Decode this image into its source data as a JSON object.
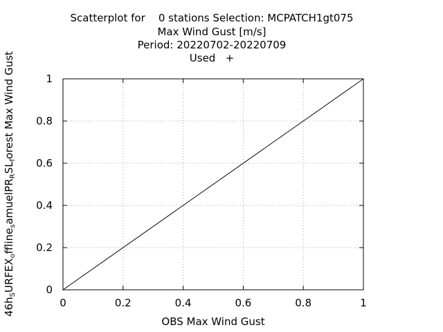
{
  "title_lines": [
    "Scatterplot for    0 stations Selection: MCPATCH1gt075",
    "Max Wind Gust [m/s]",
    "Period: 20220702-20220709",
    "Used   +"
  ],
  "xlabel": "OBS Max Wind Gust",
  "ylabel_parts": [
    {
      "text": "46h",
      "sub": false
    },
    {
      "text": "S",
      "sub": true
    },
    {
      "text": "URFEX",
      "sub": false
    },
    {
      "text": "o",
      "sub": true
    },
    {
      "text": "ffline",
      "sub": false
    },
    {
      "text": "s",
      "sub": true
    },
    {
      "text": "amuelPR",
      "sub": false
    },
    {
      "text": "R",
      "sub": true
    },
    {
      "text": "SL",
      "sub": false
    },
    {
      "text": "f",
      "sub": true
    },
    {
      "text": "orest Max Wind Gust",
      "sub": false
    }
  ],
  "chart_data": {
    "type": "scatter",
    "x_ticks": [
      "0",
      "0.2",
      "0.4",
      "0.6",
      "0.8",
      "1"
    ],
    "y_ticks": [
      "0",
      "0.2",
      "0.4",
      "0.6",
      "0.8",
      "1"
    ],
    "xlim": [
      0,
      1
    ],
    "ylim": [
      0,
      1
    ],
    "grid": true,
    "points": [],
    "reference_line": {
      "x": [
        0,
        1
      ],
      "y": [
        0,
        1
      ]
    }
  },
  "colors": {
    "axis": "#000000",
    "grid": "#a0a0a0",
    "line": "#000000"
  }
}
